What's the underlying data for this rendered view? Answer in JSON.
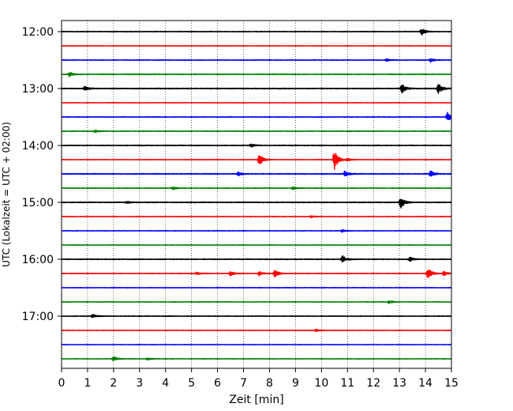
{
  "chart_data": {
    "type": "line",
    "title": "",
    "xlabel": "Zeit  [min]",
    "ylabel": "UTC (Lokalzeit = UTC + 02:00)",
    "xlim": [
      0,
      15
    ],
    "x_ticks": [
      0,
      1,
      2,
      3,
      4,
      5,
      6,
      7,
      8,
      9,
      10,
      11,
      12,
      13,
      14,
      15
    ],
    "grid": "vertical dotted",
    "legend": "none",
    "y_tick_labels": [
      "12:00",
      "13:00",
      "14:00",
      "15:00",
      "16:00",
      "17:00"
    ],
    "trace_interval_minutes": 15,
    "colors_cycle": [
      "#000000",
      "#ff0000",
      "#0000ff",
      "#008000"
    ],
    "series": [
      {
        "start": "12:00",
        "color": "#000000",
        "amp": 0.35,
        "events": [
          {
            "t": 13.85,
            "a": 5
          }
        ]
      },
      {
        "start": "12:15",
        "color": "#ff0000",
        "amp": 0.25,
        "events": []
      },
      {
        "start": "12:30",
        "color": "#0000ff",
        "amp": 0.35,
        "events": [
          {
            "t": 12.5,
            "a": 1.6
          },
          {
            "t": 14.2,
            "a": 2.5
          }
        ]
      },
      {
        "start": "12:45",
        "color": "#008000",
        "amp": 0.4,
        "events": [
          {
            "t": 0.3,
            "a": 3
          }
        ]
      },
      {
        "start": "13:00",
        "color": "#000000",
        "amp": 0.45,
        "events": [
          {
            "t": 0.9,
            "a": 3
          },
          {
            "t": 13.1,
            "a": 6
          },
          {
            "t": 14.5,
            "a": 7
          }
        ]
      },
      {
        "start": "13:15",
        "color": "#ff0000",
        "amp": 0.25,
        "events": []
      },
      {
        "start": "13:30",
        "color": "#0000ff",
        "amp": 0.35,
        "events": [
          {
            "t": 14.85,
            "a": 7
          }
        ]
      },
      {
        "start": "13:45",
        "color": "#008000",
        "amp": 0.35,
        "events": [
          {
            "t": 1.3,
            "a": 1.5
          }
        ]
      },
      {
        "start": "14:00",
        "color": "#000000",
        "amp": 0.4,
        "events": [
          {
            "t": 7.3,
            "a": 2
          }
        ]
      },
      {
        "start": "14:15",
        "color": "#ff0000",
        "amp": 0.3,
        "events": [
          {
            "t": 7.6,
            "a": 9
          },
          {
            "t": 10.5,
            "a": 14
          },
          {
            "t": 11,
            "a": 2
          }
        ]
      },
      {
        "start": "14:30",
        "color": "#0000ff",
        "amp": 0.45,
        "events": [
          {
            "t": 6.8,
            "a": 2.5
          },
          {
            "t": 10.9,
            "a": 4
          },
          {
            "t": 14.2,
            "a": 4
          }
        ]
      },
      {
        "start": "14:45",
        "color": "#008000",
        "amp": 0.35,
        "events": [
          {
            "t": 4.3,
            "a": 2
          },
          {
            "t": 8.9,
            "a": 2
          }
        ]
      },
      {
        "start": "15:00",
        "color": "#000000",
        "amp": 0.45,
        "events": [
          {
            "t": 13.05,
            "a": 8
          },
          {
            "t": 2.5,
            "a": 1.5
          }
        ]
      },
      {
        "start": "15:15",
        "color": "#ff0000",
        "amp": 0.3,
        "events": [
          {
            "t": 9.6,
            "a": 1.5
          }
        ]
      },
      {
        "start": "15:30",
        "color": "#0000ff",
        "amp": 0.3,
        "events": [
          {
            "t": 10.8,
            "a": 2
          }
        ]
      },
      {
        "start": "15:45",
        "color": "#008000",
        "amp": 0.3,
        "events": []
      },
      {
        "start": "16:00",
        "color": "#000000",
        "amp": 0.4,
        "events": [
          {
            "t": 10.8,
            "a": 5
          },
          {
            "t": 13.4,
            "a": 3
          }
        ]
      },
      {
        "start": "16:15",
        "color": "#ff0000",
        "amp": 0.35,
        "events": [
          {
            "t": 5.2,
            "a": 1.5
          },
          {
            "t": 6.5,
            "a": 3
          },
          {
            "t": 7.6,
            "a": 3
          },
          {
            "t": 8.2,
            "a": 5
          },
          {
            "t": 14.1,
            "a": 8
          },
          {
            "t": 14.7,
            "a": 3
          }
        ]
      },
      {
        "start": "16:30",
        "color": "#0000ff",
        "amp": 0.3,
        "events": []
      },
      {
        "start": "16:45",
        "color": "#008000",
        "amp": 0.3,
        "events": [
          {
            "t": 12.6,
            "a": 2
          }
        ]
      },
      {
        "start": "17:00",
        "color": "#000000",
        "amp": 0.35,
        "events": [
          {
            "t": 1.2,
            "a": 2.5
          }
        ]
      },
      {
        "start": "17:15",
        "color": "#ff0000",
        "amp": 0.3,
        "events": [
          {
            "t": 9.8,
            "a": 1.5
          }
        ]
      },
      {
        "start": "17:30",
        "color": "#0000ff",
        "amp": 0.25,
        "events": []
      },
      {
        "start": "17:45",
        "color": "#008000",
        "amp": 0.3,
        "events": [
          {
            "t": 2.0,
            "a": 3
          },
          {
            "t": 3.3,
            "a": 1.5
          }
        ]
      }
    ]
  }
}
